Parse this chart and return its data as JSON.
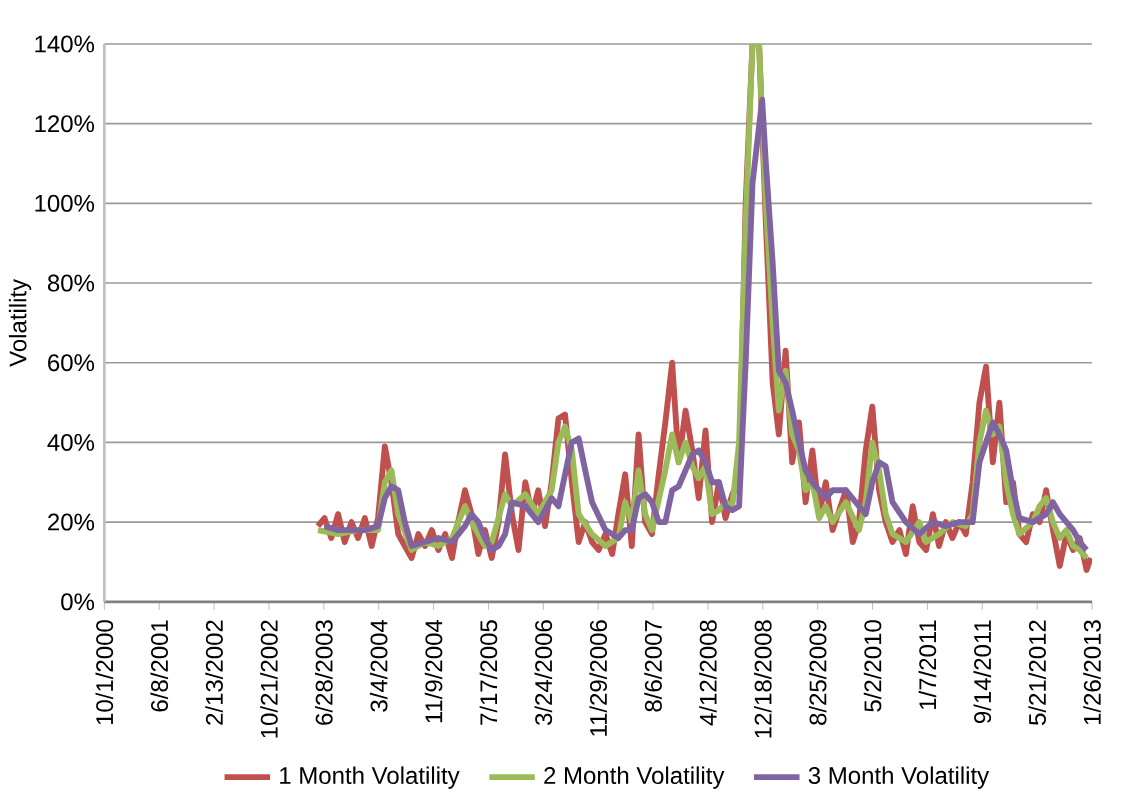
{
  "chart_data": {
    "type": "line",
    "ylabel": "Volatility",
    "xlim": [
      "2000-10-01",
      "2013-01-26"
    ],
    "xticks": [
      {
        "value": "2000-10-01",
        "label": "10/1/2000"
      },
      {
        "value": "2001-06-08",
        "label": "6/8/2001"
      },
      {
        "value": "2002-02-13",
        "label": "2/13/2002"
      },
      {
        "value": "2002-10-21",
        "label": "10/21/2002"
      },
      {
        "value": "2003-06-28",
        "label": "6/28/2003"
      },
      {
        "value": "2004-03-04",
        "label": "3/4/2004"
      },
      {
        "value": "2004-11-09",
        "label": "11/9/2004"
      },
      {
        "value": "2005-07-17",
        "label": "7/17/2005"
      },
      {
        "value": "2006-03-24",
        "label": "3/24/2006"
      },
      {
        "value": "2006-11-29",
        "label": "11/29/2006"
      },
      {
        "value": "2007-08-06",
        "label": "8/6/2007"
      },
      {
        "value": "2008-04-12",
        "label": "4/12/2008"
      },
      {
        "value": "2008-12-18",
        "label": "12/18/2008"
      },
      {
        "value": "2009-08-25",
        "label": "8/25/2009"
      },
      {
        "value": "2010-05-02",
        "label": "5/2/2010"
      },
      {
        "value": "2011-01-07",
        "label": "1/7/2011"
      },
      {
        "value": "2011-09-14",
        "label": "9/14/2011"
      },
      {
        "value": "2012-05-21",
        "label": "5/21/2012"
      },
      {
        "value": "2013-01-26",
        "label": "1/26/2013"
      }
    ],
    "ylim": [
      0,
      140
    ],
    "yticks": [
      {
        "value": 0,
        "label": "0%"
      },
      {
        "value": 20,
        "label": "20%"
      },
      {
        "value": 40,
        "label": "40%"
      },
      {
        "value": 60,
        "label": "60%"
      },
      {
        "value": 80,
        "label": "80%"
      },
      {
        "value": 100,
        "label": "100%"
      },
      {
        "value": 120,
        "label": "120%"
      },
      {
        "value": 140,
        "label": "140%"
      }
    ],
    "grid": "y",
    "legend": "bottom",
    "marker": "none",
    "line_style": "solid",
    "series": [
      {
        "name": "1 Month Volatility",
        "color": "#c0504d",
        "x": [
          "2003-06",
          "2003-07",
          "2003-08",
          "2003-09",
          "2003-10",
          "2003-11",
          "2003-12",
          "2004-01",
          "2004-02",
          "2004-03",
          "2004-04",
          "2004-05",
          "2004-06",
          "2004-07",
          "2004-08",
          "2004-09",
          "2004-10",
          "2004-11",
          "2004-12",
          "2005-01",
          "2005-02",
          "2005-03",
          "2005-04",
          "2005-05",
          "2005-06",
          "2005-07",
          "2005-08",
          "2005-09",
          "2005-10",
          "2005-11",
          "2005-12",
          "2006-01",
          "2006-02",
          "2006-03",
          "2006-04",
          "2006-05",
          "2006-06",
          "2006-07",
          "2006-08",
          "2006-09",
          "2006-10",
          "2006-11",
          "2006-12",
          "2007-01",
          "2007-02",
          "2007-03",
          "2007-04",
          "2007-05",
          "2007-06",
          "2007-07",
          "2007-08",
          "2007-09",
          "2007-10",
          "2007-11",
          "2007-12",
          "2008-01",
          "2008-02",
          "2008-03",
          "2008-04",
          "2008-05",
          "2008-06",
          "2008-07",
          "2008-08",
          "2008-09",
          "2008-10",
          "2008-11",
          "2008-12",
          "2009-01",
          "2009-02",
          "2009-03",
          "2009-04",
          "2009-05",
          "2009-06",
          "2009-07",
          "2009-08",
          "2009-09",
          "2009-10",
          "2009-11",
          "2010-01",
          "2010-02",
          "2010-03",
          "2010-04",
          "2010-05",
          "2010-06",
          "2010-07",
          "2010-08",
          "2010-09",
          "2010-10",
          "2010-11",
          "2010-12",
          "2011-01",
          "2011-02",
          "2011-03",
          "2011-04",
          "2011-05",
          "2011-06",
          "2011-07",
          "2011-08",
          "2011-09",
          "2011-10",
          "2011-11",
          "2011-12",
          "2012-01",
          "2012-02",
          "2012-03",
          "2012-04",
          "2012-05",
          "2012-06",
          "2012-07",
          "2012-08",
          "2012-09",
          "2012-10",
          "2012-11",
          "2012-12",
          "2013-01",
          "2013-01-20"
        ],
        "values": [
          19,
          21,
          16,
          22,
          15,
          20,
          16,
          21,
          14,
          21,
          39,
          30,
          17,
          14,
          11,
          17,
          14,
          18,
          13,
          17,
          11,
          20,
          28,
          22,
          12,
          18,
          11,
          20,
          37,
          22,
          13,
          30,
          22,
          28,
          19,
          30,
          46,
          47,
          30,
          15,
          20,
          15,
          13,
          17,
          12,
          22,
          32,
          14,
          42,
          20,
          17,
          32,
          45,
          60,
          35,
          48,
          38,
          26,
          43,
          20,
          30,
          21,
          27,
          30,
          100,
          140,
          140,
          95,
          55,
          42,
          63,
          35,
          45,
          25,
          38,
          22,
          30,
          18,
          28,
          15,
          20,
          38,
          49,
          28,
          20,
          15,
          18,
          12,
          24,
          15,
          13,
          22,
          14,
          20,
          16,
          20,
          17,
          30,
          50,
          59,
          35,
          50,
          25,
          30,
          17,
          15,
          22,
          20,
          28,
          18,
          9,
          17,
          13,
          16,
          8,
          11
        ]
      },
      {
        "name": "2 Month Volatility",
        "color": "#9bbb59",
        "x": [
          "2003-06",
          "2003-09",
          "2003-12",
          "2004-03",
          "2004-04",
          "2004-05",
          "2004-06",
          "2004-08",
          "2004-10",
          "2004-12",
          "2005-02",
          "2005-04",
          "2005-05",
          "2005-07",
          "2005-08",
          "2005-10",
          "2005-11",
          "2006-01",
          "2006-03",
          "2006-05",
          "2006-06",
          "2006-07",
          "2006-08",
          "2006-09",
          "2006-11",
          "2007-01",
          "2007-03",
          "2007-04",
          "2007-05",
          "2007-06",
          "2007-07",
          "2007-08",
          "2007-10",
          "2007-11",
          "2007-12",
          "2008-01",
          "2008-02",
          "2008-03",
          "2008-04",
          "2008-05",
          "2008-06",
          "2008-07",
          "2008-08",
          "2008-09",
          "2008-10",
          "2008-11",
          "2008-12",
          "2009-01",
          "2009-02",
          "2009-03",
          "2009-04",
          "2009-05",
          "2009-06",
          "2009-07",
          "2009-08",
          "2009-09",
          "2009-10",
          "2009-11",
          "2010-01",
          "2010-03",
          "2010-04",
          "2010-05",
          "2010-06",
          "2010-07",
          "2010-08",
          "2010-10",
          "2010-12",
          "2011-01",
          "2011-03",
          "2011-05",
          "2011-07",
          "2011-08",
          "2011-09",
          "2011-10",
          "2011-11",
          "2011-12",
          "2012-01",
          "2012-02",
          "2012-03",
          "2012-05",
          "2012-06",
          "2012-07",
          "2012-08",
          "2012-09",
          "2012-10",
          "2012-11",
          "2012-12",
          "2013-01"
        ],
        "values": [
          18,
          17,
          18,
          18,
          30,
          33,
          22,
          13,
          15,
          14,
          16,
          24,
          20,
          14,
          15,
          27,
          24,
          27,
          22,
          28,
          40,
          44,
          38,
          22,
          17,
          14,
          16,
          25,
          20,
          33,
          22,
          18,
          33,
          42,
          35,
          40,
          34,
          31,
          34,
          22,
          23,
          25,
          24,
          40,
          95,
          140,
          140,
          100,
          70,
          48,
          58,
          42,
          38,
          28,
          30,
          21,
          24,
          20,
          25,
          18,
          25,
          40,
          33,
          22,
          17,
          15,
          20,
          15,
          17,
          20,
          19,
          22,
          40,
          48,
          42,
          44,
          30,
          22,
          17,
          20,
          24,
          26,
          20,
          16,
          18,
          14,
          13,
          11
        ]
      },
      {
        "name": "3 Month Volatility",
        "color": "#8064a2",
        "x": [
          "2003-07",
          "2003-09",
          "2003-11",
          "2004-01",
          "2004-03",
          "2004-04",
          "2004-05",
          "2004-06",
          "2004-07",
          "2004-08",
          "2004-10",
          "2004-12",
          "2005-02",
          "2005-04",
          "2005-05",
          "2005-06",
          "2005-07",
          "2005-08",
          "2005-09",
          "2005-10",
          "2005-11",
          "2006-01",
          "2006-03",
          "2006-04",
          "2006-05",
          "2006-06",
          "2006-07",
          "2006-08",
          "2006-09",
          "2006-10",
          "2006-11",
          "2007-01",
          "2007-02",
          "2007-03",
          "2007-04",
          "2007-05",
          "2007-06",
          "2007-07",
          "2007-08",
          "2007-09",
          "2007-10",
          "2007-11",
          "2007-12",
          "2008-01",
          "2008-02",
          "2008-03",
          "2008-04",
          "2008-05",
          "2008-06",
          "2008-07",
          "2008-08",
          "2008-09",
          "2008-10",
          "2008-11",
          "2008-12-15",
          "2009-01",
          "2009-02",
          "2009-03",
          "2009-04",
          "2009-05",
          "2009-06",
          "2009-07",
          "2009-08",
          "2009-10",
          "2009-11",
          "2010-01",
          "2010-03",
          "2010-04",
          "2010-05",
          "2010-06",
          "2010-07",
          "2010-08",
          "2010-10",
          "2010-12",
          "2011-02",
          "2011-04",
          "2011-06",
          "2011-08",
          "2011-09",
          "2011-10",
          "2011-11",
          "2011-12",
          "2012-01",
          "2012-02",
          "2012-03",
          "2012-05",
          "2012-07",
          "2012-08",
          "2012-09",
          "2012-11",
          "2012-12",
          "2013-01"
        ],
        "values": [
          19,
          18,
          18,
          18,
          19,
          26,
          29,
          28,
          20,
          14,
          15,
          16,
          15,
          19,
          22,
          20,
          16,
          13,
          14,
          17,
          25,
          24,
          20,
          23,
          26,
          24,
          32,
          40,
          41,
          33,
          25,
          18,
          17,
          16,
          18,
          18,
          26,
          27,
          25,
          20,
          20,
          28,
          29,
          33,
          37,
          38,
          35,
          30,
          30,
          24,
          23,
          24,
          60,
          105,
          126,
          110,
          85,
          58,
          55,
          48,
          40,
          33,
          30,
          26,
          28,
          28,
          24,
          22,
          30,
          35,
          34,
          25,
          20,
          17,
          20,
          19,
          20,
          20,
          35,
          40,
          45,
          42,
          38,
          28,
          21,
          20,
          22,
          25,
          22,
          18,
          15,
          13
        ]
      }
    ]
  }
}
